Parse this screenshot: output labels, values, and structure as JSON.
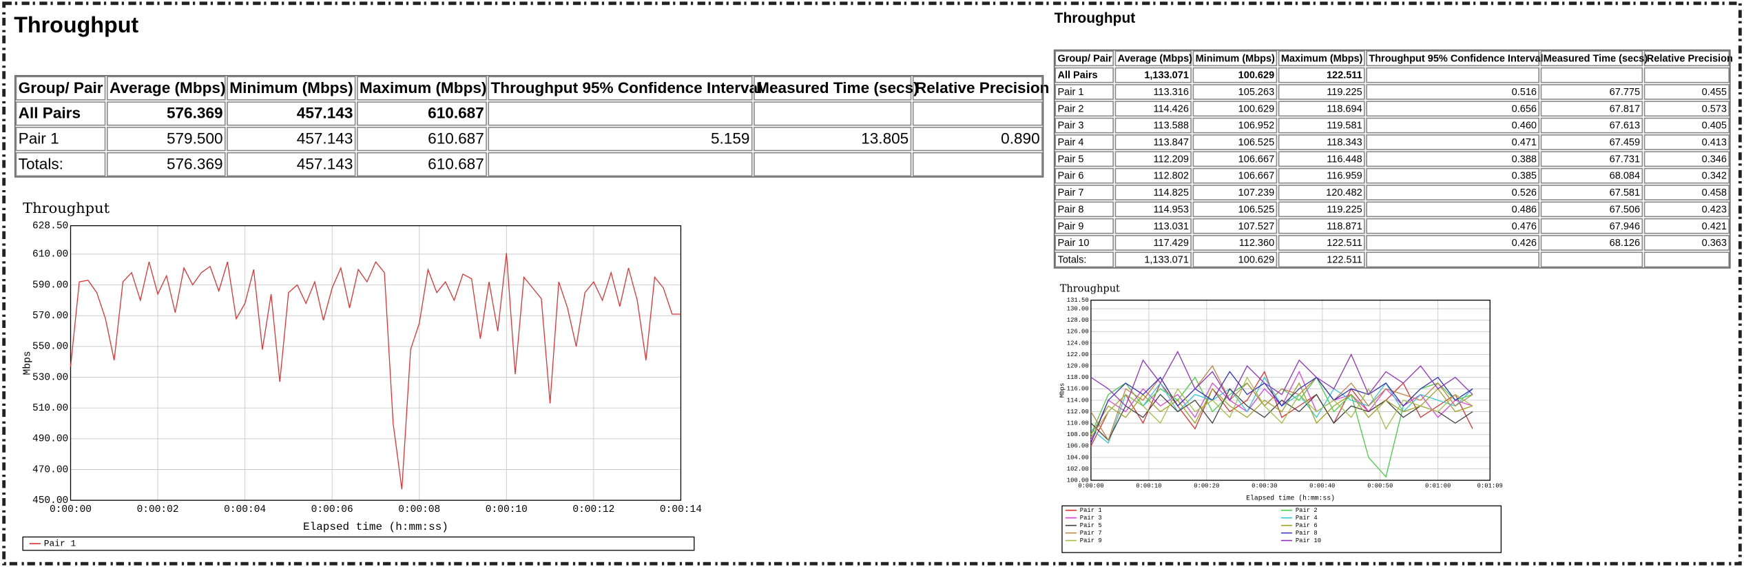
{
  "reports": [
    {
      "title": "Throughput",
      "table": {
        "header": [
          "Group/ Pair",
          "Average (Mbps)",
          "Minimum (Mbps)",
          "Maximum (Mbps)",
          "Throughput 95% Confidence Interval",
          "Measured Time (secs)",
          "Relative Precision"
        ],
        "rows": [
          [
            "All Pairs",
            "576.369",
            "457.143",
            "610.687",
            null,
            null,
            null
          ],
          [
            "Pair 1",
            "579.500",
            "457.143",
            "610.687",
            "5.159",
            "13.805",
            "0.890"
          ],
          [
            "Totals:",
            "576.369",
            "457.143",
            "610.687",
            null,
            null,
            null
          ]
        ]
      }
    },
    {
      "title": "Throughput",
      "table": {
        "header": [
          "Group/ Pair",
          "Average (Mbps)",
          "Minimum (Mbps)",
          "Maximum (Mbps)",
          "Throughput 95% Confidence Interval",
          "Measured Time (secs)",
          "Relative Precision"
        ],
        "rows": [
          [
            "All Pairs",
            "1,133.071",
            "100.629",
            "122.511",
            null,
            null,
            null
          ],
          [
            "Pair 1",
            "113.316",
            "105.263",
            "119.225",
            "0.516",
            "67.775",
            "0.455"
          ],
          [
            "Pair 2",
            "114.426",
            "100.629",
            "118.694",
            "0.656",
            "67.817",
            "0.573"
          ],
          [
            "Pair 3",
            "113.588",
            "106.952",
            "119.581",
            "0.460",
            "67.613",
            "0.405"
          ],
          [
            "Pair 4",
            "113.847",
            "106.525",
            "118.343",
            "0.471",
            "67.459",
            "0.413"
          ],
          [
            "Pair 5",
            "112.209",
            "106.667",
            "116.448",
            "0.388",
            "67.731",
            "0.346"
          ],
          [
            "Pair 6",
            "112.802",
            "106.667",
            "116.959",
            "0.385",
            "68.084",
            "0.342"
          ],
          [
            "Pair 7",
            "114.825",
            "107.239",
            "120.482",
            "0.526",
            "67.581",
            "0.458"
          ],
          [
            "Pair 8",
            "114.953",
            "106.525",
            "119.225",
            "0.486",
            "67.506",
            "0.423"
          ],
          [
            "Pair 9",
            "113.031",
            "107.527",
            "118.871",
            "0.476",
            "67.946",
            "0.421"
          ],
          [
            "Pair 10",
            "117.429",
            "112.360",
            "122.511",
            "0.426",
            "68.126",
            "0.363"
          ],
          [
            "Totals:",
            "1,133.071",
            "100.629",
            "122.511",
            null,
            null,
            null
          ]
        ]
      }
    }
  ],
  "chart_data": [
    {
      "type": "line",
      "title": "Throughput",
      "x_label": "Elapsed time (h:mm:ss)",
      "y_label": "Mbps",
      "grid": true,
      "legend": "bottom",
      "x": [
        0,
        0.2,
        0.4,
        0.6,
        0.8,
        1,
        1.2,
        1.4,
        1.6,
        1.8,
        2,
        2.2,
        2.4,
        2.6,
        2.8,
        3,
        3.2,
        3.4,
        3.6,
        3.8,
        4,
        4.2,
        4.4,
        4.6,
        4.8,
        5,
        5.2,
        5.4,
        5.6,
        5.8,
        6,
        6.2,
        6.4,
        6.6,
        6.8,
        7,
        7.2,
        7.4,
        7.6,
        7.8,
        8,
        8.2,
        8.4,
        8.6,
        8.8,
        9,
        9.2,
        9.4,
        9.6,
        9.8,
        10,
        10.2,
        10.4,
        10.6,
        10.8,
        11,
        11.2,
        11.4,
        11.6,
        11.8,
        12,
        12.2,
        12.4,
        12.6,
        12.8,
        13,
        13.2,
        13.4,
        13.6,
        13.8,
        14
      ],
      "xlim": [
        0,
        14
      ],
      "xticks": [
        {
          "value": 0,
          "label": "0:00:00"
        },
        {
          "value": 2,
          "label": "0:00:02"
        },
        {
          "value": 4,
          "label": "0:00:04"
        },
        {
          "value": 6,
          "label": "0:00:06"
        },
        {
          "value": 8,
          "label": "0:00:08"
        },
        {
          "value": 10,
          "label": "0:00:10"
        },
        {
          "value": 12,
          "label": "0:00:12"
        },
        {
          "value": 14,
          "label": "0:00:14"
        }
      ],
      "ylim": [
        450,
        628.5
      ],
      "yticks": [
        {
          "value": 450,
          "label": "450.00"
        },
        {
          "value": 470,
          "label": "470.00"
        },
        {
          "value": 490,
          "label": "490.00"
        },
        {
          "value": 510,
          "label": "510.00"
        },
        {
          "value": 530,
          "label": "530.00"
        },
        {
          "value": 550,
          "label": "550.00"
        },
        {
          "value": 570,
          "label": "570.00"
        },
        {
          "value": 590,
          "label": "590.00"
        },
        {
          "value": 610,
          "label": "610.00"
        },
        {
          "value": 628.5,
          "label": "628.50"
        }
      ],
      "series": [
        {
          "name": "Pair 1",
          "color": "#e03030",
          "values": [
            537,
            592,
            593,
            585,
            568,
            541,
            592,
            598,
            580,
            605,
            584,
            596,
            572,
            601,
            590,
            598,
            602,
            586,
            605,
            568,
            578,
            600,
            548,
            584,
            527,
            585,
            590,
            578,
            592,
            567,
            588,
            601,
            575,
            600,
            592,
            605,
            598,
            500,
            457.143,
            548,
            565,
            600,
            585,
            592,
            580,
            597,
            594,
            555,
            592,
            560,
            610.687,
            532,
            595,
            588,
            581,
            513,
            592,
            575,
            550,
            585,
            592,
            580,
            598,
            576,
            601,
            580,
            541,
            595,
            588,
            571,
            571
          ]
        }
      ]
    },
    {
      "type": "line",
      "title": "Throughput",
      "x_label": "Elapsed time (h:mm:ss)",
      "y_label": "Mbps",
      "grid": true,
      "legend": "bottom",
      "x": [
        0,
        3,
        6,
        9,
        12,
        15,
        18,
        21,
        24,
        27,
        30,
        33,
        36,
        39,
        42,
        45,
        48,
        51,
        54,
        57,
        60,
        63,
        66
      ],
      "xlim": [
        0,
        69
      ],
      "xticks": [
        {
          "value": 0,
          "label": "0:00:00"
        },
        {
          "value": 10,
          "label": "0:00:10"
        },
        {
          "value": 20,
          "label": "0:00:20"
        },
        {
          "value": 30,
          "label": "0:00:30"
        },
        {
          "value": 40,
          "label": "0:00:40"
        },
        {
          "value": 50,
          "label": "0:00:50"
        },
        {
          "value": 60,
          "label": "0:01:00"
        },
        {
          "value": 69,
          "label": "0:01:09"
        }
      ],
      "ylim": [
        100,
        131.5
      ],
      "yticks": [
        {
          "value": 100,
          "label": "100.00"
        },
        {
          "value": 102,
          "label": "102.00"
        },
        {
          "value": 104,
          "label": "104.00"
        },
        {
          "value": 106,
          "label": "106.00"
        },
        {
          "value": 108,
          "label": "108.00"
        },
        {
          "value": 110,
          "label": "110.00"
        },
        {
          "value": 112,
          "label": "112.00"
        },
        {
          "value": 114,
          "label": "114.00"
        },
        {
          "value": 116,
          "label": "116.00"
        },
        {
          "value": 118,
          "label": "118.00"
        },
        {
          "value": 120,
          "label": "120.00"
        },
        {
          "value": 122,
          "label": "122.00"
        },
        {
          "value": 124,
          "label": "124.00"
        },
        {
          "value": 126,
          "label": "126.00"
        },
        {
          "value": 128,
          "label": "128.00"
        },
        {
          "value": 130,
          "label": "130.00"
        },
        {
          "value": 131.5,
          "label": "131.50"
        }
      ],
      "series": [
        {
          "name": "Pair 1",
          "color": "#e03030",
          "values": [
            106,
            112,
            115,
            110,
            117,
            113,
            109,
            116,
            112,
            114,
            119,
            111,
            113,
            115,
            110,
            116,
            112,
            114,
            117,
            111,
            113,
            115,
            109
          ]
        },
        {
          "name": "Pair 2",
          "color": "#40d040",
          "values": [
            108,
            115,
            117,
            113,
            116,
            114,
            118,
            112,
            115,
            117,
            113,
            116,
            114,
            118,
            112,
            115,
            104,
            100.6,
            113,
            116,
            117,
            114,
            115
          ]
        },
        {
          "name": "Pair 3",
          "color": "#e040e0",
          "values": [
            107,
            114,
            112,
            116,
            113,
            115,
            111,
            117,
            114,
            112,
            116,
            113,
            119,
            112,
            114,
            115,
            112,
            116,
            113,
            115,
            111,
            114,
            113
          ]
        },
        {
          "name": "Pair 4",
          "color": "#30c8d8",
          "values": [
            109,
            106.5,
            115,
            113,
            117,
            112,
            115,
            114,
            116,
            112,
            118,
            113,
            115,
            111,
            116,
            114,
            113,
            117,
            112,
            115,
            114,
            113,
            116
          ]
        },
        {
          "name": "Pair 5",
          "color": "#404040",
          "values": [
            110,
            107,
            113,
            111,
            115,
            112,
            114,
            110,
            116,
            113,
            111,
            114,
            112,
            115,
            110,
            113,
            112,
            114,
            111,
            113,
            112,
            110,
            112
          ]
        },
        {
          "name": "Pair 6",
          "color": "#a0a020",
          "values": [
            108,
            113,
            111,
            115,
            112,
            114,
            110,
            116,
            113,
            111,
            114,
            112,
            117,
            110,
            113,
            115,
            111,
            114,
            112,
            113,
            116,
            112,
            113
          ]
        },
        {
          "name": "Pair 7",
          "color": "#c08040",
          "values": [
            112,
            107,
            116,
            114,
            118,
            113,
            116,
            120,
            114,
            117,
            113,
            116,
            115,
            118,
            114,
            117,
            113,
            116,
            115,
            114,
            117,
            113,
            115
          ]
        },
        {
          "name": "Pair 8",
          "color": "#3030c0",
          "values": [
            106.5,
            114,
            117,
            115,
            118,
            113,
            116,
            114,
            119,
            115,
            117,
            113,
            116,
            118,
            114,
            116,
            115,
            117,
            113,
            116,
            118,
            114,
            116
          ]
        },
        {
          "name": "Pair 9",
          "color": "#a0c040",
          "values": [
            107.5,
            112,
            115,
            113,
            110,
            116,
            112,
            114,
            111,
            118,
            113,
            110,
            115,
            112,
            114,
            111,
            116,
            109,
            114,
            113,
            112,
            115,
            113
          ]
        },
        {
          "name": "Pair 10",
          "color": "#9030c0",
          "values": [
            118,
            116,
            113,
            121,
            117,
            122.5,
            116,
            119,
            114,
            120,
            117,
            115,
            121,
            118,
            116,
            122,
            115,
            119,
            117,
            120,
            116,
            118,
            115
          ]
        }
      ]
    }
  ]
}
